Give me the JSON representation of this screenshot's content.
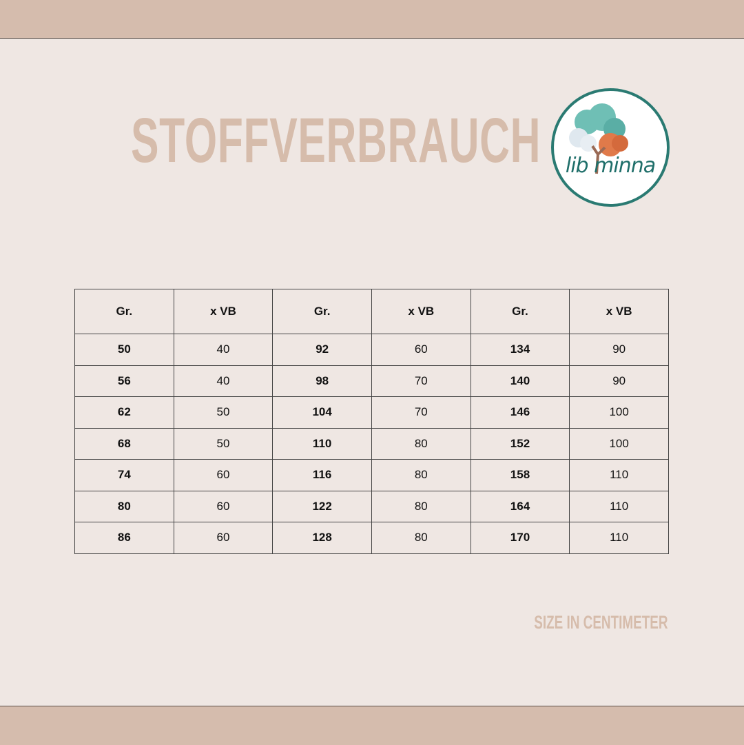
{
  "title": "STOFFVERBRAUCH",
  "logo": {
    "text": "libminna",
    "colors": {
      "ring": "#2a7a72",
      "tree_teal": "#6fbfb5",
      "tree_orange": "#e07a4a"
    }
  },
  "table": {
    "headers": [
      "Gr.",
      "x VB",
      "Gr.",
      "x VB",
      "Gr.",
      "x VB"
    ],
    "rows": [
      [
        "50",
        "40",
        "92",
        "60",
        "134",
        "90"
      ],
      [
        "56",
        "40",
        "98",
        "70",
        "140",
        "90"
      ],
      [
        "62",
        "50",
        "104",
        "70",
        "146",
        "100"
      ],
      [
        "68",
        "50",
        "110",
        "80",
        "152",
        "100"
      ],
      [
        "74",
        "60",
        "116",
        "80",
        "158",
        "110"
      ],
      [
        "80",
        "60",
        "122",
        "80",
        "164",
        "110"
      ],
      [
        "86",
        "60",
        "128",
        "80",
        "170",
        "110"
      ]
    ]
  },
  "note": "SIZE IN CENTIMETER",
  "colors": {
    "background": "#efe7e3",
    "band": "#d5bcad",
    "accent_text": "#d6bcab"
  }
}
